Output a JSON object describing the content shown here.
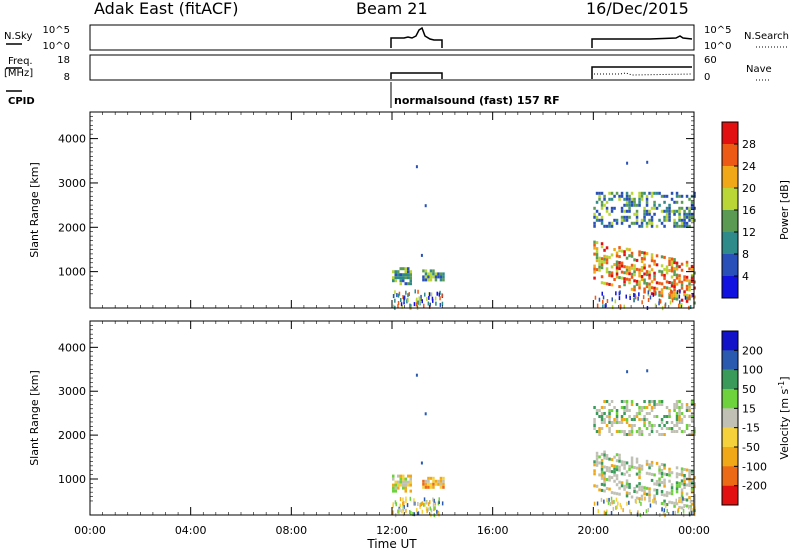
{
  "header": {
    "title_left": "Adak East (fitACF)",
    "title_center": "Beam 21",
    "title_right": "16/Dec/2015"
  },
  "nsky_panel": {
    "left_label": "N.Sky",
    "right_label": "N.Search",
    "left_ticks": [
      "10^5",
      "10^0"
    ],
    "right_ticks": [
      "10^5",
      "10^0"
    ]
  },
  "freq_panel": {
    "left_label_1": "Freq.",
    "left_label_2": "[MHz]",
    "right_label": "Nave",
    "left_ticks": [
      "18",
      "8"
    ],
    "right_ticks": [
      "60",
      "0"
    ]
  },
  "cpid": {
    "label": "CPID",
    "mode_text": "normalsound (fast) 157 RF"
  },
  "chart_data": [
    {
      "type": "heatmap",
      "quantity": "Power",
      "x_range_hours": [
        0,
        24
      ],
      "y_range_km": [
        180,
        4600
      ],
      "ylabel": "Slant Range [km]",
      "y_ticks": [
        "1000",
        "2000",
        "3000",
        "4000"
      ],
      "colorbar": {
        "label": "Power [dB]",
        "tick_labels": [
          "4",
          "8",
          "12",
          "16",
          "20",
          "24",
          "28"
        ],
        "colors": [
          "#1212e0",
          "#2850b8",
          "#2f8a8a",
          "#5a9a52",
          "#b9d636",
          "#f0a818",
          "#ec5a16",
          "#e21010"
        ]
      },
      "echo_regions": [
        {
          "t_start": 12.0,
          "t_end": 12.7,
          "r_min": 750,
          "r_max": 1100,
          "level": "green-blue"
        },
        {
          "t_start": 13.2,
          "t_end": 14.0,
          "r_min": 800,
          "r_max": 1050,
          "level": "blue-green"
        },
        {
          "t_start": 20.0,
          "t_end": 24.0,
          "r_min": 2000,
          "r_max": 2800,
          "level": "blue-green"
        },
        {
          "t_start": 20.0,
          "t_end": 24.0,
          "r_min": 800,
          "r_max": 1700,
          "level": "orange-red"
        }
      ]
    },
    {
      "type": "heatmap",
      "quantity": "Velocity",
      "x_range_hours": [
        0,
        24
      ],
      "y_range_km": [
        180,
        4600
      ],
      "ylabel": "Slant Range [km]",
      "xlabel": "Time UT",
      "x_ticks": [
        "00:00",
        "04:00",
        "08:00",
        "12:00",
        "16:00",
        "20:00",
        "00:00"
      ],
      "y_ticks": [
        "1000",
        "2000",
        "3000",
        "4000"
      ],
      "colorbar": {
        "label": "Velocity [m s",
        "label_sup": "-1",
        "label_end": "]",
        "tick_labels": [
          "-200",
          "-100",
          "-50",
          "-15",
          "15",
          "50",
          "100",
          "200"
        ],
        "colors": [
          "#e21010",
          "#ec6a16",
          "#f0a818",
          "#f5d23c",
          "#c0c0b4",
          "#6ed23c",
          "#3a9a5a",
          "#2a5ab0",
          "#1212c8"
        ]
      },
      "echo_regions": [
        {
          "t_start": 12.0,
          "t_end": 12.7,
          "r_min": 750,
          "r_max": 1100,
          "level": "yellow-green"
        },
        {
          "t_start": 13.2,
          "t_end": 14.0,
          "r_min": 800,
          "r_max": 1050,
          "level": "orange-yellow"
        },
        {
          "t_start": 20.0,
          "t_end": 24.0,
          "r_min": 2000,
          "r_max": 2800,
          "level": "grey"
        },
        {
          "t_start": 20.0,
          "t_end": 24.0,
          "r_min": 800,
          "r_max": 1700,
          "level": "grey"
        }
      ]
    }
  ]
}
